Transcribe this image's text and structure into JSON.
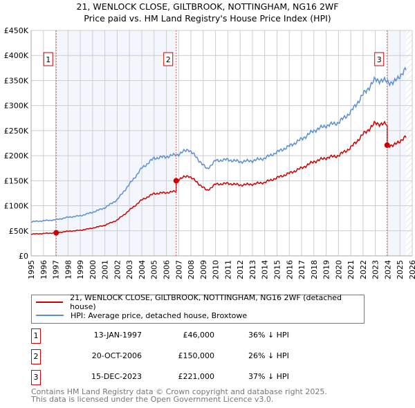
{
  "chart_data": {
    "type": "line",
    "title": "21, WENLOCK CLOSE, GILTBROOK, NOTTINGHAM, NG16 2WF",
    "subtitle": "Price paid vs. HM Land Registry's House Price Index (HPI)",
    "xlim": [
      1995,
      2026
    ],
    "ylim": [
      0,
      450000
    ],
    "x_ticks": [
      "1995",
      "1996",
      "1997",
      "1998",
      "1999",
      "2000",
      "2001",
      "2002",
      "2003",
      "2004",
      "2005",
      "2006",
      "2007",
      "2008",
      "2009",
      "2010",
      "2011",
      "2012",
      "2013",
      "2014",
      "2015",
      "2016",
      "2017",
      "2018",
      "2019",
      "2020",
      "2021",
      "2022",
      "2023",
      "2024",
      "2025",
      "2026"
    ],
    "y_ticks": [
      {
        "v": 0,
        "label": "£0"
      },
      {
        "v": 50000,
        "label": "£50K"
      },
      {
        "v": 100000,
        "label": "£100K"
      },
      {
        "v": 150000,
        "label": "£150K"
      },
      {
        "v": 200000,
        "label": "£200K"
      },
      {
        "v": 250000,
        "label": "£250K"
      },
      {
        "v": 300000,
        "label": "£300K"
      },
      {
        "v": 350000,
        "label": "£350K"
      },
      {
        "v": 400000,
        "label": "£400K"
      },
      {
        "v": 450000,
        "label": "£450K"
      }
    ],
    "grid": true,
    "hpi_series": {
      "name": "HPI: Average price, detached house, Broxtowe",
      "color": "#5b8fd0",
      "x": [
        1995,
        1996,
        1997,
        1998,
        1999,
        2000,
        2001,
        2002,
        2003,
        2004,
        2005,
        2006,
        2007,
        2007.8,
        2008.5,
        2009.3,
        2010,
        2011,
        2012,
        2013,
        2014,
        2015,
        2016,
        2017,
        2018,
        2019,
        2020,
        2021,
        2022,
        2023,
        2024,
        2024.5,
        2025,
        2025.5
      ],
      "y": [
        68000,
        70000,
        72000,
        77000,
        80000,
        87000,
        96000,
        112000,
        143000,
        175000,
        195000,
        198000,
        203000,
        213000,
        195000,
        173000,
        190000,
        192000,
        188000,
        190000,
        195000,
        207000,
        219000,
        233000,
        250000,
        260000,
        266000,
        287000,
        322000,
        352000,
        348000,
        345000,
        360000,
        372000
      ]
    },
    "price_series": {
      "name": "21, WENLOCK CLOSE, GILTBROOK, NOTTINGHAM, NG16 2WF (detached house)",
      "color": "#cc0000"
    },
    "sales": [
      {
        "n": "1",
        "x": 1997.04,
        "date": "13-JAN-1997",
        "price": 46000,
        "price_label": "£46,000",
        "hpi": "36% ↓ HPI"
      },
      {
        "n": "2",
        "x": 2006.8,
        "date": "20-OCT-2006",
        "price": 150000,
        "price_label": "£150,000",
        "hpi": "26% ↓ HPI"
      },
      {
        "n": "3",
        "x": 2023.96,
        "date": "15-DEC-2023",
        "price": 221000,
        "price_label": "£221,000",
        "hpi": "37% ↓ HPI"
      }
    ],
    "data_end": 2025.5
  },
  "footer": {
    "line1": "Contains HM Land Registry data © Crown copyright and database right 2025.",
    "line2": "This data is licensed under the Open Government Licence v3.0."
  }
}
